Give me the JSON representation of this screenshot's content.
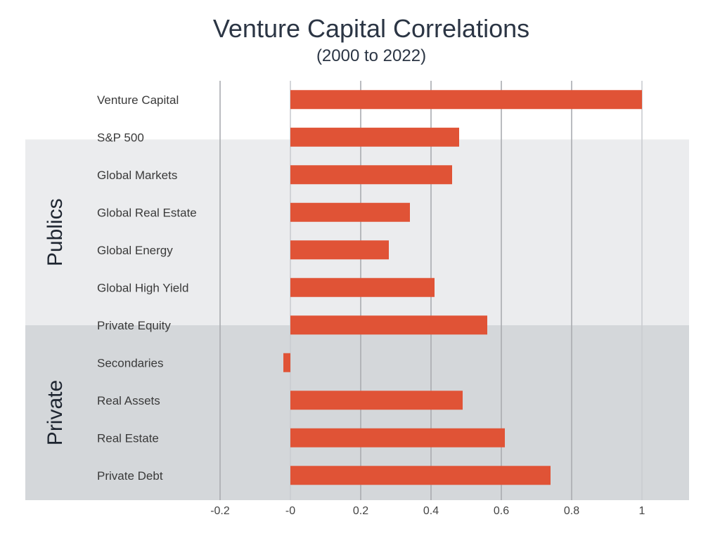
{
  "chart_data": {
    "type": "bar",
    "orientation": "horizontal",
    "title": "Venture Capital Correlations",
    "subtitle": "(2000 to 2022)",
    "categories": [
      "Venture Capital",
      "S&P 500",
      "Global Markets",
      "Global Real Estate",
      "Global Energy",
      "Global High Yield",
      "Private Equity",
      "Secondaries",
      "Real Assets",
      "Real Estate",
      "Private Debt"
    ],
    "values": [
      1.0,
      0.48,
      0.46,
      0.34,
      0.28,
      0.41,
      0.56,
      -0.02,
      0.49,
      0.61,
      0.74
    ],
    "xlim": [
      -0.2,
      1.0
    ],
    "x_ticks": [
      -0.2,
      0,
      0.2,
      0.4,
      0.6,
      0.8,
      1
    ],
    "x_tick_labels": [
      "-0.2",
      "-0",
      "0.2",
      "0.4",
      "0.6",
      "0.8",
      "1"
    ],
    "grid": "vertical",
    "groups": [
      {
        "label": "Publics",
        "from": "S&P 500",
        "to": "Global High Yield",
        "color": "#ebecee"
      },
      {
        "label": "Private",
        "from": "Private Equity",
        "to": "Private Debt",
        "color": "#d4d7da"
      }
    ],
    "bar_color": "#e05336"
  }
}
